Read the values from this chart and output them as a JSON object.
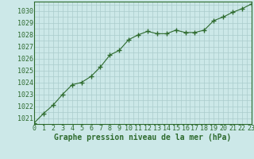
{
  "x": [
    0,
    1,
    2,
    3,
    4,
    5,
    6,
    7,
    8,
    9,
    10,
    11,
    12,
    13,
    14,
    15,
    16,
    17,
    18,
    19,
    20,
    21,
    22,
    23
  ],
  "y": [
    1020.6,
    1021.4,
    1022.1,
    1023.0,
    1023.8,
    1024.0,
    1024.5,
    1025.3,
    1026.3,
    1026.7,
    1027.6,
    1028.0,
    1028.3,
    1028.1,
    1028.1,
    1028.4,
    1028.2,
    1028.2,
    1028.4,
    1029.2,
    1029.5,
    1029.9,
    1030.2,
    1030.6
  ],
  "line_color": "#2d6a2d",
  "marker": "P",
  "marker_size": 2.5,
  "bg_color": "#cce8e8",
  "grid_color": "#aacccc",
  "xlabel": "Graphe pression niveau de la mer (hPa)",
  "xlabel_fontsize": 7.0,
  "ylabel_ticks": [
    1021,
    1022,
    1023,
    1024,
    1025,
    1026,
    1027,
    1028,
    1029,
    1030
  ],
  "xlim": [
    0,
    23
  ],
  "ylim": [
    1020.5,
    1030.8
  ],
  "tick_fontsize": 6.0,
  "xtick_labels": [
    "0",
    "1",
    "2",
    "3",
    "4",
    "5",
    "6",
    "7",
    "8",
    "9",
    "10",
    "11",
    "12",
    "13",
    "14",
    "15",
    "16",
    "17",
    "18",
    "19",
    "20",
    "21",
    "22",
    "23"
  ]
}
